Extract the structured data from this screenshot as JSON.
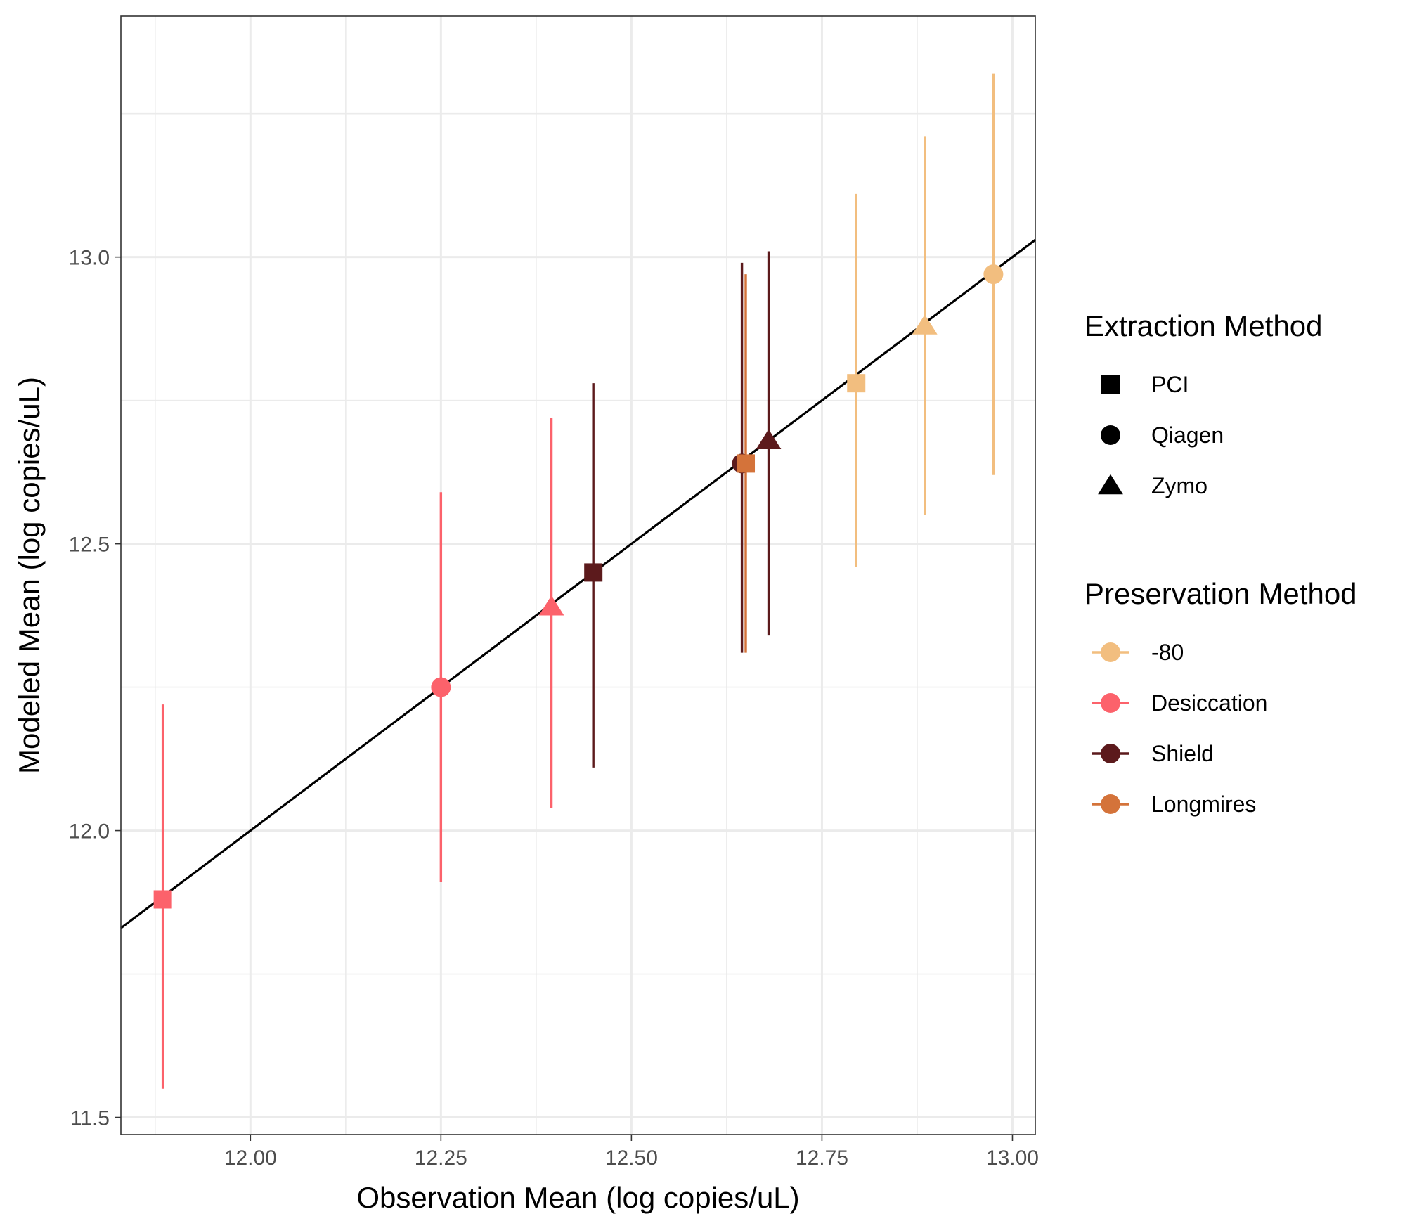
{
  "chart_data": {
    "type": "scatter",
    "title": "",
    "xlabel": "Observation Mean (log copies/uL)",
    "ylabel": "Modeled Mean (log copies/uL)",
    "xlim": [
      11.83,
      13.03
    ],
    "ylim": [
      11.47,
      13.42
    ],
    "x_ticks": [
      12.0,
      12.25,
      12.5,
      12.75,
      13.0
    ],
    "x_tick_labels": [
      "12.00",
      "12.25",
      "12.50",
      "12.75",
      "13.00"
    ],
    "y_ticks": [
      11.5,
      12.0,
      12.5,
      13.0
    ],
    "y_tick_labels": [
      "11.5",
      "12.0",
      "12.5",
      "13.0"
    ],
    "grid": true,
    "reference_line": {
      "type": "identity",
      "slope": 1,
      "intercept": 0,
      "color": "#000000"
    },
    "legend_position": "right",
    "legends": [
      {
        "title": "Extraction Method",
        "kind": "shape",
        "items": [
          {
            "label": "PCI",
            "shape": "square"
          },
          {
            "label": "Qiagen",
            "shape": "circle"
          },
          {
            "label": "Zymo",
            "shape": "triangle"
          }
        ]
      },
      {
        "title": "Preservation Method",
        "kind": "color",
        "items": [
          {
            "label": "-80",
            "color": "#F2BE7F"
          },
          {
            "label": "Desiccation",
            "color": "#FC626B"
          },
          {
            "label": "Shield",
            "color": "#5C1A1C"
          },
          {
            "label": "Longmires",
            "color": "#D4733A"
          }
        ]
      }
    ],
    "points": [
      {
        "extraction": "PCI",
        "preservation": "Desiccation",
        "x": 11.885,
        "y": 11.88,
        "ymin": 11.55,
        "ymax": 12.22
      },
      {
        "extraction": "Qiagen",
        "preservation": "Desiccation",
        "x": 12.25,
        "y": 12.25,
        "ymin": 11.91,
        "ymax": 12.59
      },
      {
        "extraction": "Zymo",
        "preservation": "Desiccation",
        "x": 12.395,
        "y": 12.39,
        "ymin": 12.04,
        "ymax": 12.72
      },
      {
        "extraction": "PCI",
        "preservation": "Shield",
        "x": 12.45,
        "y": 12.45,
        "ymin": 12.11,
        "ymax": 12.78
      },
      {
        "extraction": "Qiagen",
        "preservation": "Shield",
        "x": 12.645,
        "y": 12.64,
        "ymin": 12.31,
        "ymax": 12.99
      },
      {
        "extraction": "PCI",
        "preservation": "Longmires",
        "x": 12.65,
        "y": 12.64,
        "ymin": 12.31,
        "ymax": 12.97
      },
      {
        "extraction": "Zymo",
        "preservation": "Shield",
        "x": 12.68,
        "y": 12.68,
        "ymin": 12.34,
        "ymax": 13.01
      },
      {
        "extraction": "PCI",
        "preservation": "-80",
        "x": 12.795,
        "y": 12.78,
        "ymin": 12.46,
        "ymax": 13.11
      },
      {
        "extraction": "Zymo",
        "preservation": "-80",
        "x": 12.885,
        "y": 12.88,
        "ymin": 12.55,
        "ymax": 13.21
      },
      {
        "extraction": "Qiagen",
        "preservation": "-80",
        "x": 12.975,
        "y": 12.97,
        "ymin": 12.62,
        "ymax": 13.32
      }
    ]
  }
}
